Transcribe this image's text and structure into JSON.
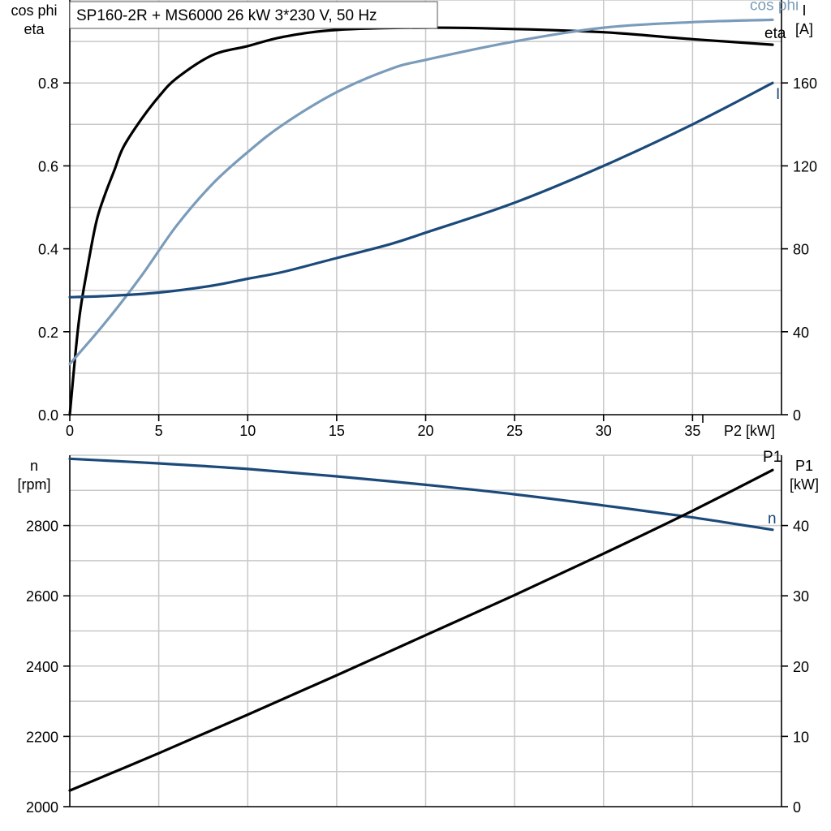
{
  "title": "SP160-2R + MS6000   26 kW   3*230 V, 50 Hz",
  "chart_data": [
    {
      "type": "line",
      "xlabel": "P2 [kW]",
      "xlim": [
        0,
        40
      ],
      "x_ticks": [
        0,
        5,
        10,
        15,
        20,
        25,
        30,
        35
      ],
      "left_axis": {
        "label_line1": "cos phi",
        "label_line2": "eta",
        "ylim": [
          0,
          0.9
        ],
        "ticks": [
          "0.0",
          "0.2",
          "0.4",
          "0.6",
          "0.8"
        ]
      },
      "right_axis": {
        "label_line1": "I",
        "label_line2": "[A]",
        "ylim": [
          0,
          180
        ],
        "ticks": [
          "0",
          "40",
          "80",
          "120",
          "160"
        ]
      },
      "series": [
        {
          "name": "eta",
          "axis": "left",
          "color": "#000000",
          "x": [
            0,
            0.5,
            1,
            1.5,
            2,
            2.5,
            3,
            4,
            5,
            6,
            8,
            10,
            12,
            15,
            20,
            25,
            30,
            35,
            39.5
          ],
          "y": [
            0,
            0.2,
            0.32,
            0.42,
            0.48,
            0.53,
            0.58,
            0.64,
            0.69,
            0.73,
            0.78,
            0.8,
            0.82,
            0.835,
            0.84,
            0.837,
            0.83,
            0.815,
            0.803
          ]
        },
        {
          "name": "cos phi",
          "axis": "left",
          "color": "#7a9cba",
          "x": [
            0,
            2,
            4,
            6,
            8,
            10,
            12,
            15,
            18,
            20,
            25,
            30,
            35,
            39.5
          ],
          "y": [
            0.11,
            0.2,
            0.3,
            0.41,
            0.5,
            0.57,
            0.63,
            0.7,
            0.75,
            0.77,
            0.81,
            0.84,
            0.852,
            0.857
          ]
        },
        {
          "name": "I",
          "axis": "right",
          "color": "#1b4a7a",
          "x": [
            0,
            2,
            5,
            8,
            10,
            12,
            15,
            18,
            20,
            25,
            30,
            35,
            39.5
          ],
          "y": [
            51,
            51.5,
            53,
            56,
            59,
            62,
            68,
            74,
            79,
            92,
            108,
            126,
            144
          ]
        }
      ]
    },
    {
      "type": "line",
      "xlim": [
        0,
        40
      ],
      "left_axis": {
        "label_line1": "n",
        "label_line2": "[rpm]",
        "ylim": [
          2000,
          3000
        ],
        "ticks": [
          "2000",
          "2200",
          "2400",
          "2600",
          "2800"
        ]
      },
      "right_axis": {
        "label_line1": "P1",
        "label_line2": "[kW]",
        "ylim": [
          0,
          50
        ],
        "ticks": [
          "0",
          "10",
          "20",
          "30",
          "40"
        ]
      },
      "series": [
        {
          "name": "n",
          "axis": "left",
          "color": "#1b4a7a",
          "x": [
            0,
            5,
            10,
            15,
            20,
            25,
            30,
            35,
            39.5
          ],
          "y": [
            2990,
            2977,
            2961,
            2940,
            2916,
            2889,
            2857,
            2823,
            2788
          ]
        },
        {
          "name": "P1",
          "axis": "right",
          "color": "#000000",
          "x": [
            0,
            5,
            10,
            15,
            20,
            25,
            30,
            35,
            39.5
          ],
          "y": [
            2.3,
            7.6,
            13.1,
            18.7,
            24.4,
            30.1,
            36.0,
            42.1,
            47.9
          ]
        }
      ]
    }
  ]
}
